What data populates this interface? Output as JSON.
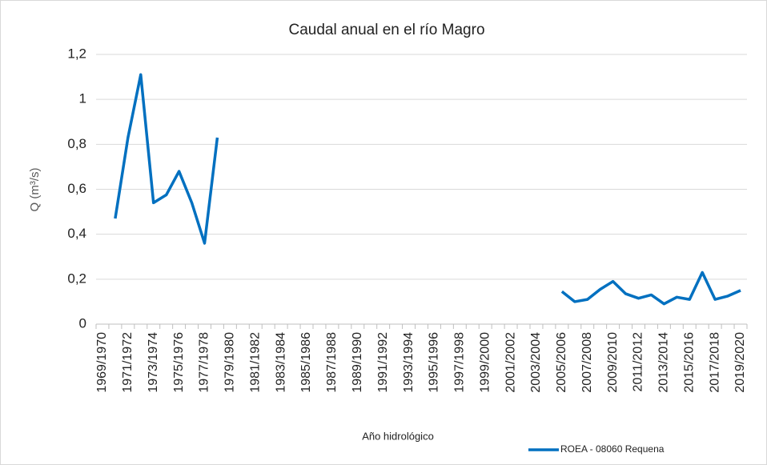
{
  "chart_data": {
    "type": "line",
    "title": "Caudal anual en el río Magro",
    "x_label": "Año hidrológico",
    "y_label": "Q (m³/s)",
    "categories": [
      "1969/1970",
      null,
      "1971/1972",
      null,
      "1973/1974",
      null,
      "1975/1976",
      null,
      "1977/1978",
      null,
      "1979/1980",
      null,
      "1981/1982",
      null,
      "1983/1984",
      null,
      "1985/1986",
      null,
      "1987/1988",
      null,
      "1989/1990",
      null,
      "1991/1992",
      null,
      "1993/1994",
      null,
      "1995/1996",
      null,
      "1997/1998",
      null,
      "1999/2000",
      null,
      "2001/2002",
      null,
      "2003/2004",
      null,
      "2005/2006",
      null,
      "2007/2008",
      null,
      "2009/2010",
      null,
      "2011/2012",
      null,
      "2013/2014",
      null,
      "2015/2016",
      null,
      "2017/2018",
      null,
      "2019/2020"
    ],
    "series": [
      {
        "name": "ROEA - 08060 Requena",
        "color": "#0070c0",
        "values": [
          null,
          0.47,
          0.83,
          1.11,
          0.54,
          0.575,
          0.68,
          0.54,
          0.36,
          0.83,
          null,
          null,
          null,
          null,
          null,
          null,
          null,
          null,
          null,
          null,
          null,
          null,
          null,
          null,
          null,
          null,
          null,
          null,
          null,
          null,
          null,
          null,
          null,
          null,
          null,
          null,
          0.145,
          0.1,
          0.11,
          0.155,
          0.19,
          0.135,
          0.115,
          0.13,
          0.09,
          0.12,
          0.11,
          0.23,
          0.11,
          0.125,
          0.15
        ]
      }
    ],
    "ylim": [
      0,
      1.2
    ],
    "yticks": [
      0,
      {
        "value": 0.2,
        "label": "0,2"
      },
      {
        "value": 0.4,
        "label": "0,4"
      },
      {
        "value": 0.6,
        "label": "0,6"
      },
      {
        "value": 0.8,
        "label": "0,8"
      },
      1,
      {
        "value": 1.2,
        "label": "1,2"
      }
    ],
    "grid": true,
    "legend": "bottom-right"
  }
}
